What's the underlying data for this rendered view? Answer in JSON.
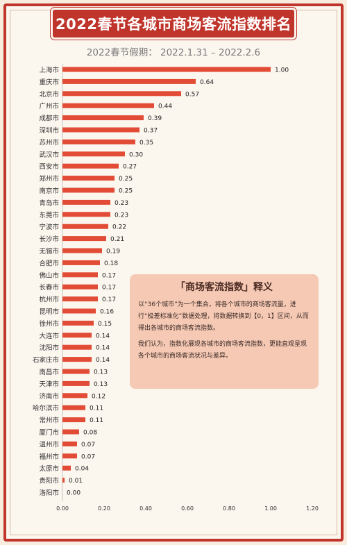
{
  "header": {
    "title": "2022春节各城市商场客流指数排名",
    "subtitle": "2022春节假期： 2022.1.31 – 2022.2.6"
  },
  "note": {
    "title": "「商场客流指数」释义",
    "paragraph1": "以“36个城市”为一个集合，将各个城市的商场客流量，进行“极差标准化”数据处理，将数据转换到【0，1】区间，从而得出各城市的商场客流指数。",
    "paragraph2": "我们认为，指数化展现各城市的商场客流指数，更能直观呈现各个城市的商场客流状况与差异。"
  },
  "colors": {
    "bar": "#e24b35",
    "accent": "#c0352b",
    "note_bg": "#f6c9b4"
  },
  "chart_data": {
    "type": "bar",
    "orientation": "horizontal",
    "categories": [
      "上海市",
      "重庆市",
      "北京市",
      "广州市",
      "成都市",
      "深圳市",
      "苏州市",
      "武汉市",
      "西安市",
      "郑州市",
      "南京市",
      "青岛市",
      "东莞市",
      "宁波市",
      "长沙市",
      "无锡市",
      "合肥市",
      "佛山市",
      "长春市",
      "杭州市",
      "昆明市",
      "徐州市",
      "大连市",
      "沈阳市",
      "石家庄市",
      "南昌市",
      "天津市",
      "济南市",
      "哈尔滨市",
      "常州市",
      "厦门市",
      "温州市",
      "福州市",
      "太原市",
      "贵阳市",
      "洛阳市"
    ],
    "values": [
      1.0,
      0.64,
      0.57,
      0.44,
      0.39,
      0.37,
      0.35,
      0.3,
      0.27,
      0.25,
      0.25,
      0.23,
      0.23,
      0.22,
      0.21,
      0.19,
      0.18,
      0.17,
      0.17,
      0.17,
      0.16,
      0.15,
      0.14,
      0.14,
      0.14,
      0.13,
      0.13,
      0.12,
      0.11,
      0.11,
      0.08,
      0.07,
      0.07,
      0.04,
      0.01,
      0.0
    ],
    "value_labels": [
      "1.00",
      "0.64",
      "0.57",
      "0.44",
      "0.39",
      "0.37",
      "0.35",
      "0.30",
      "0.27",
      "0.25",
      "0.25",
      "0.23",
      "0.23",
      "0.22",
      "0.21",
      "0.19",
      "0.18",
      "0.17",
      "0.17",
      "0.17",
      "0.16",
      "0.15",
      "0.14",
      "0.14",
      "0.14",
      "0.13",
      "0.13",
      "0.12",
      "0.11",
      "0.11",
      "0.08",
      "0.07",
      "0.07",
      "0.04",
      "0.01",
      "0.00"
    ],
    "xlim": [
      0,
      1.2
    ],
    "xticks": [
      "0.00",
      "0.20",
      "0.40",
      "0.60",
      "0.80",
      "1.00",
      "1.20"
    ],
    "grid": false,
    "legend": "none"
  }
}
